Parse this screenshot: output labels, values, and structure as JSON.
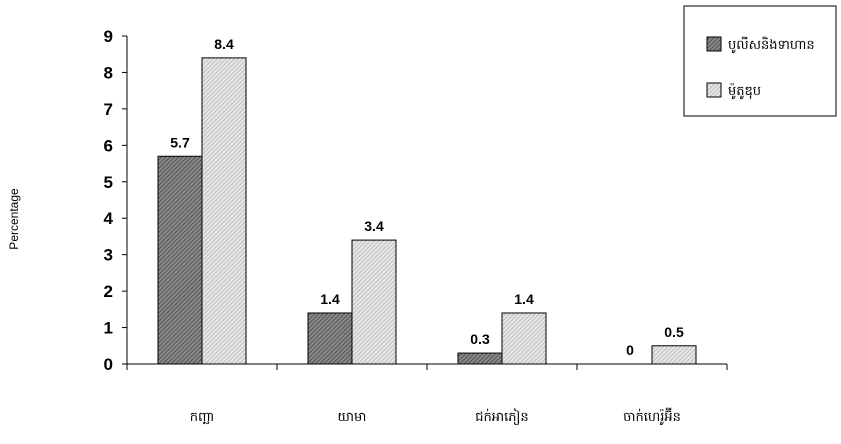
{
  "chart_data": {
    "type": "bar",
    "ylabel": "Percentage",
    "ylim": [
      0,
      9
    ],
    "yticks": [
      0,
      1,
      2,
      3,
      4,
      5,
      6,
      7,
      8,
      9
    ],
    "categories": [
      "កញ្ឆា",
      "យាមា",
      "ជក់អាភៀន",
      "ចាក់ហេរ៉ូអ៊ីន"
    ],
    "series": [
      {
        "name": "បូលីសនិងទាហាន",
        "values": [
          5.7,
          1.4,
          0.3,
          0
        ],
        "color": "#6e6e6e"
      },
      {
        "name": "ម៉ូតូឌុប",
        "values": [
          8.4,
          3.4,
          1.4,
          0.5
        ],
        "color": "#d2d2d2"
      }
    ],
    "legend": "top-right",
    "grid": false
  }
}
